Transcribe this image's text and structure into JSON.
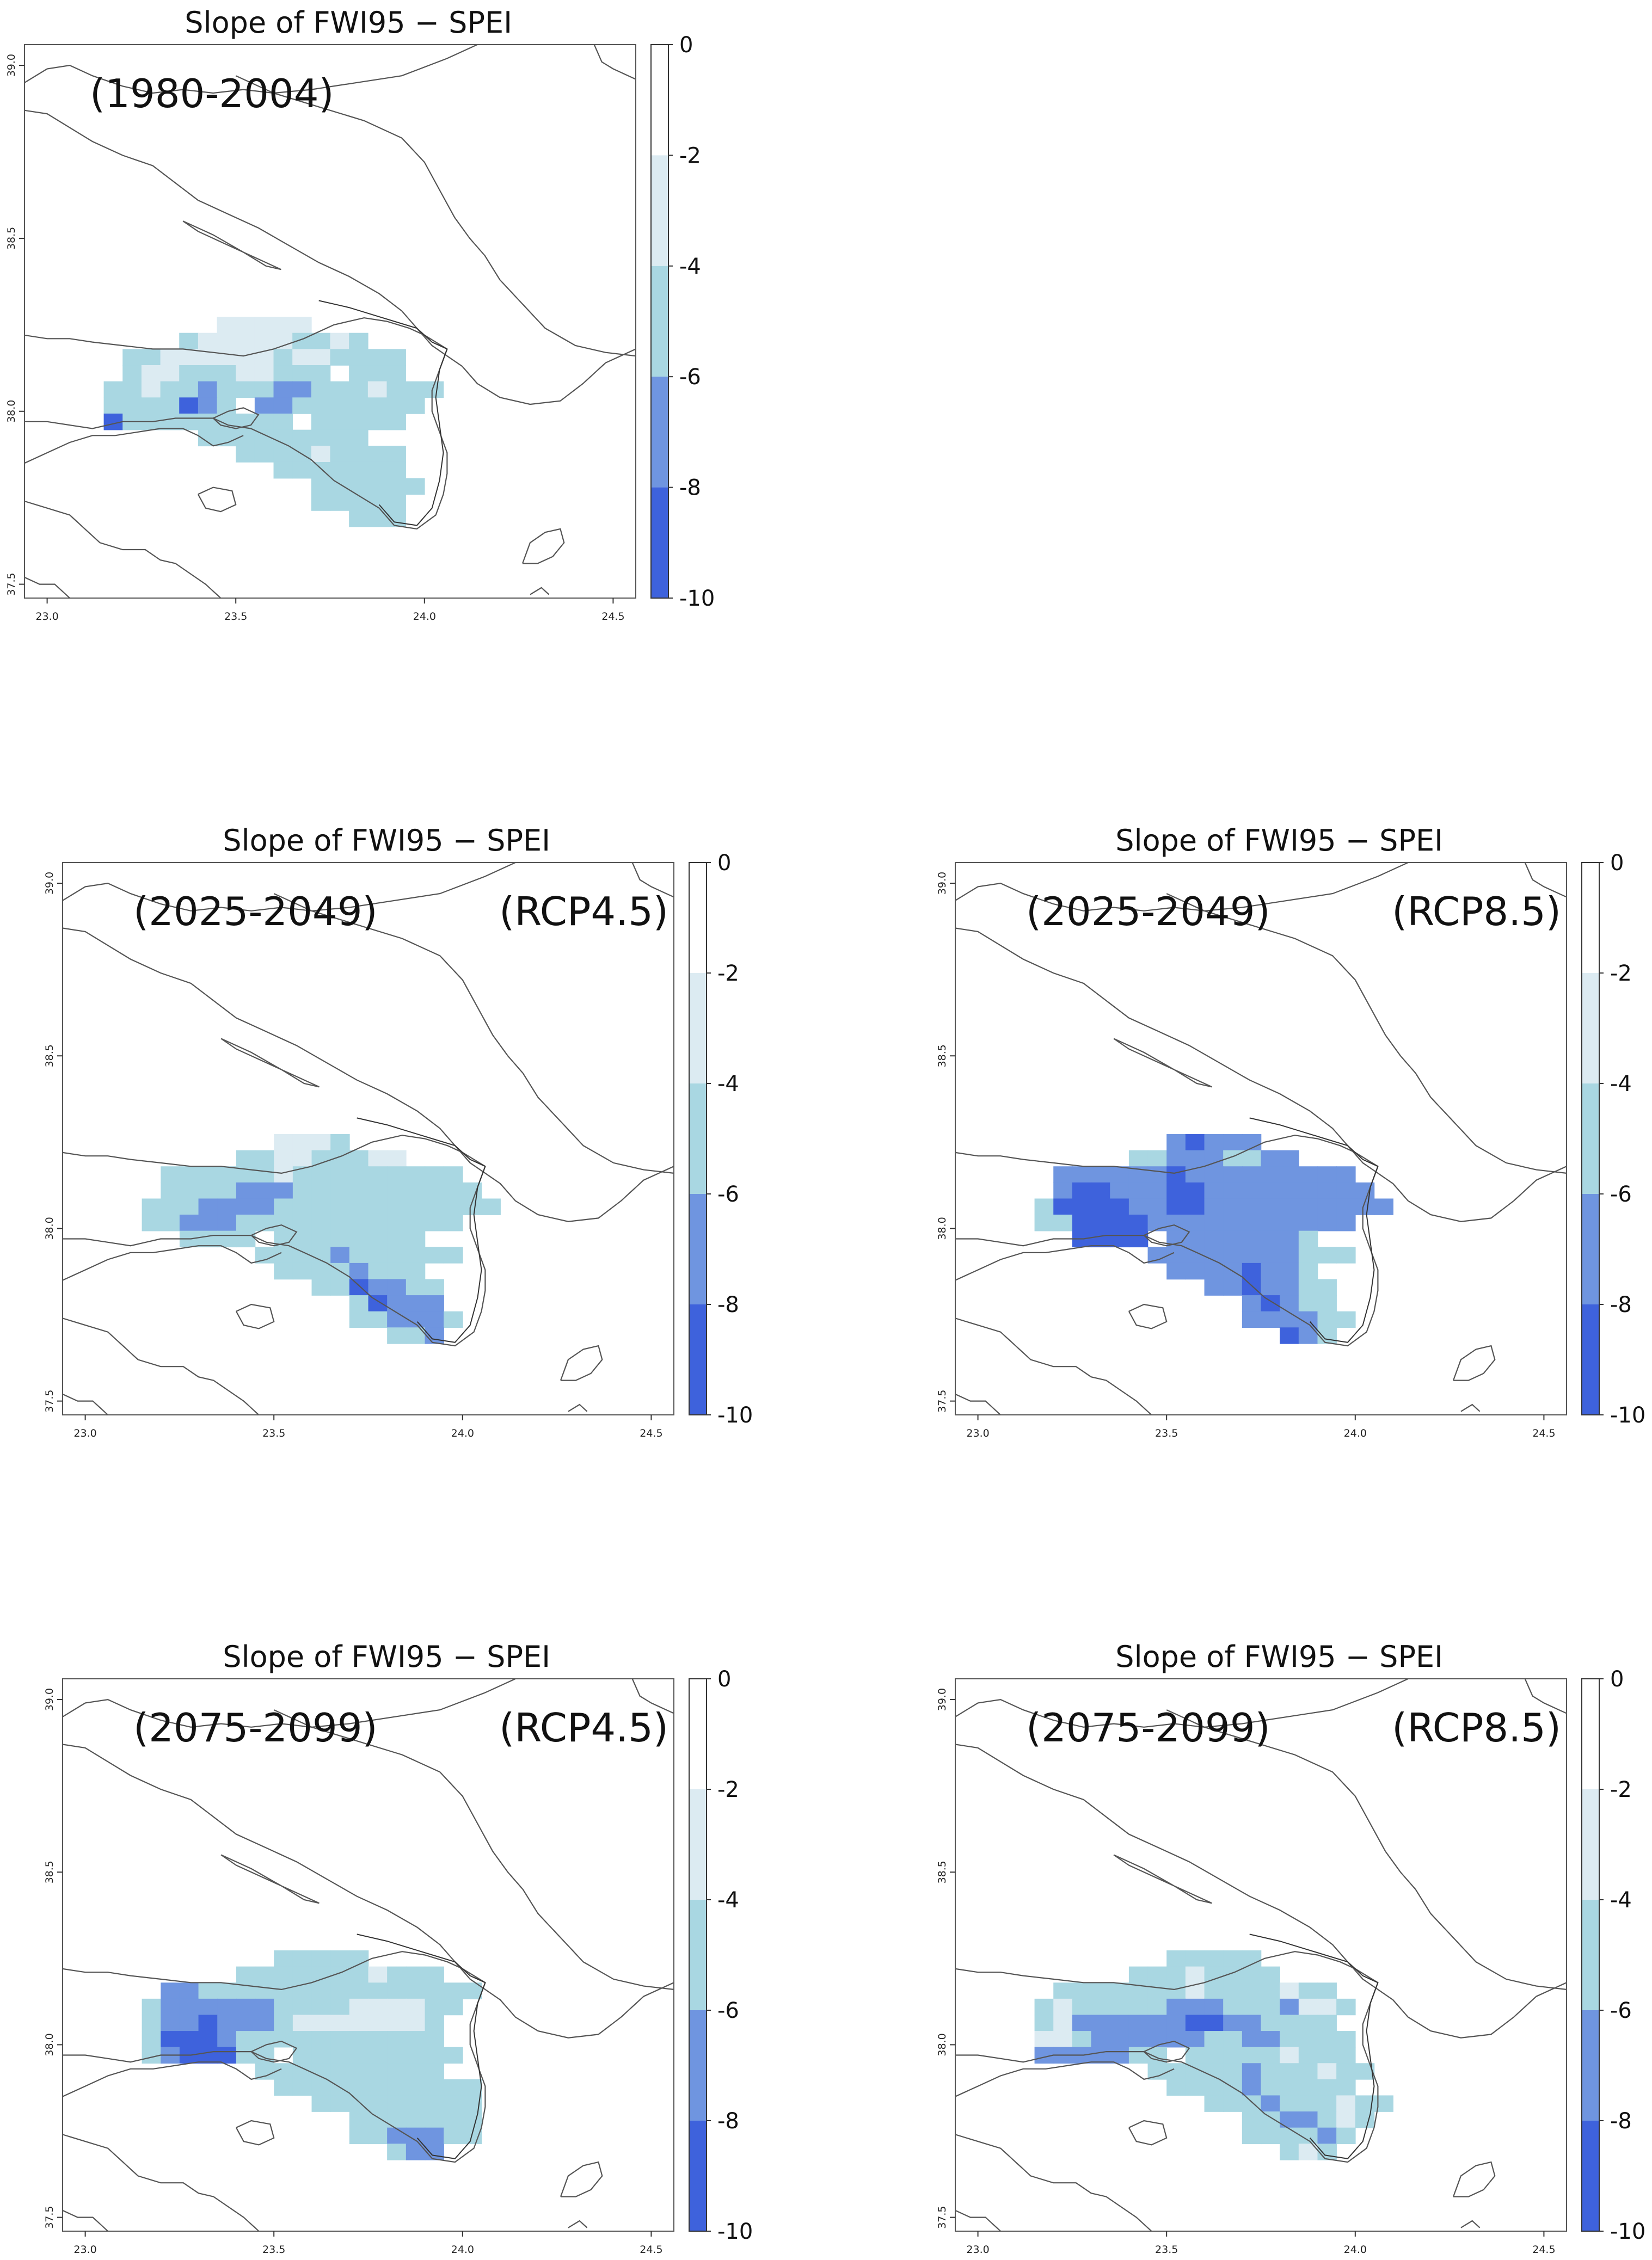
{
  "figure": {
    "description_text": ""
  },
  "legend": {
    "breaks": [
      "0",
      "-2",
      "-4",
      "-6",
      "-8",
      "-10"
    ],
    "colors": [
      "#ffffff",
      "#dcebf2",
      "#a9d7e2",
      "#6f95e0",
      "#3e62dc"
    ]
  },
  "axes": {
    "x_ticks": [
      "23.0",
      "23.5",
      "24.0",
      "24.5"
    ],
    "y_ticks": [
      "37.5",
      "38.0",
      "38.5",
      "39.0"
    ],
    "xlim": [
      22.94,
      24.56
    ],
    "ylim": [
      37.46,
      39.06
    ]
  },
  "colors": {
    "coast": "#555555",
    "frame": "#555555",
    "text": "#111111"
  },
  "chart_data": [
    {
      "type": "heatmap",
      "title": "Slope of FWI95 − SPEI",
      "period": "(1980-2004)",
      "scenario": "",
      "class_rows": [
        "....................",
        ".......11111........",
        ".....2111112212.....",
        "..221111112112222...",
        "..21122211222.222...",
        ".221223222332221222.",
        ".2222432.332222222..",
        ".4222222222.22222...",
        "......222222222.....",
        "........222212222...",
        "..........2222222...",
        "............222222..",
        "............22222...",
        "..............222...",
        "...................."
      ]
    },
    {
      "type": "heatmap",
      "title": "Slope of FWI95 − SPEI",
      "period": "(2025-2049)",
      "scenario": "(RCP4.5)",
      "class_rows": [
        "....................",
        "........1112........",
        "......221122211.....",
        "..2222221222222222..",
        "..22223332222222222.",
        ".2223333222222222222",
        ".22333222222222222..",
        "...2222.22222222....",
        ".......22223222222..",
        "........22223222....",
        "..........2243322...",
        "............24333...",
        "............223332..",
        "..............223...",
        "...................."
      ]
    },
    {
      "type": "heatmap",
      "title": "Slope of FWI95 − SPEI",
      "period": "(2025-2049)",
      "scenario": "(RCP8.5)",
      "class_rows": [
        "....................",
        "........34333.......",
        "......223332233.....",
        "..3333334333333333..",
        "..34433344333333333.",
        ".2444433443333333333",
        ".22444433333333333..",
        "...4444.33333332....",
        ".......33333333222..",
        "........33334332....",
        "..........3343322...",
        "............34322...",
        "............333322..",
        "..............432...",
        "...................."
      ]
    },
    {
      "type": "heatmap",
      "title": "Slope of FWI95 − SPEI",
      "period": "(2075-2099)",
      "scenario": "(RCP4.5)",
      "class_rows": [
        "....................",
        "........22222.......",
        "......22222221222...",
        "..33222222222222222.",
        ".23333332222111122..",
        ".2334333211111112...",
        ".2444322222222222...",
        ".2344422.222222222..",
        ".......2222222222...",
        "........22222222222.",
        "..........222222222.",
        "............2222222.",
        "............2233322.",
        "..............233...",
        "...................."
      ]
    },
    {
      "type": "heatmap",
      "title": "Slope of FWI95 − SPEI",
      "period": "(2075-2099)",
      "scenario": "(RCP8.5)",
      "class_rows": [
        "....................",
        "........22222.......",
        "......22212222......",
        "..222222212222122...",
        ".21222223332223112..",
        ".2133333344332222...",
        ".11233333322332222..",
        ".3333322.222221222..",
        ".......222223222122.",
        "........2222322222..",
        "..........2223222122",
        "............2233212.",
        "............222232..",
        "..............212...",
        "...................."
      ]
    }
  ]
}
